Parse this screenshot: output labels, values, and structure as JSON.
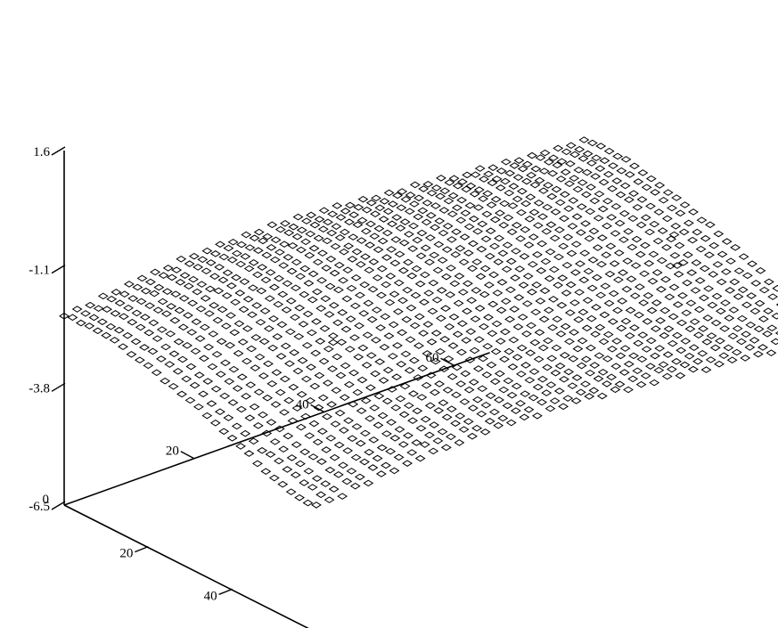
{
  "chart_data": {
    "type": "scatter",
    "title": "",
    "xlabel": "",
    "ylabel": "",
    "zlabel": "",
    "marker": "diamond",
    "color": "#000000",
    "z_axis": {
      "ticks": [
        1.6,
        -1.1,
        -3.8,
        -6.5
      ],
      "tick_labels": [
        "1.6",
        "-1.1",
        "-3.8",
        "-6.5"
      ],
      "range": [
        -6.5,
        1.6
      ]
    },
    "x_axis": {
      "ticks": [
        0,
        20,
        40
      ],
      "tick_labels": [
        "0",
        "20",
        "40"
      ],
      "range": [
        0,
        60
      ]
    },
    "y_axis": {
      "ticks": [
        20,
        40,
        60
      ],
      "tick_labels": [
        "20",
        "40",
        "60"
      ],
      "range": [
        0,
        80
      ]
    },
    "surface": {
      "x_range": [
        0,
        60
      ],
      "y_range": [
        0,
        80
      ],
      "grid_x": 31,
      "grid_y": 41,
      "z_min": -3.6,
      "z_max": -1.8
    },
    "outliers": [
      [
        56,
        78,
        -2.0
      ],
      [
        58,
        79,
        -2.6
      ],
      [
        60,
        80,
        -2.9
      ],
      [
        50,
        62,
        -1.9
      ],
      [
        40,
        68,
        -2.0
      ],
      [
        30,
        22,
        -2.5
      ]
    ]
  }
}
